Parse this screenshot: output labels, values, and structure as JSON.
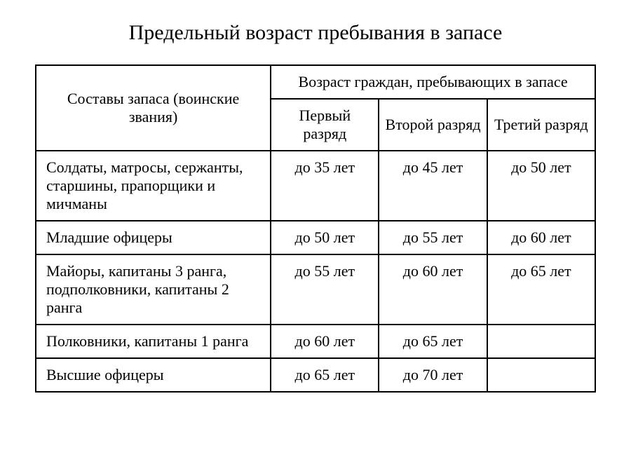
{
  "title": "Предельный возраст пребывания в запасе",
  "table": {
    "header": {
      "left": "Составы запаса (воинские звания)",
      "right": "Возраст граждан, пребывающих в запасе",
      "sub": [
        "Первый разряд",
        "Второй разряд",
        "Третий разряд"
      ]
    },
    "rows": [
      {
        "rank": "Солдаты, матросы, сержанты, старшины, прапорщики и мичманы",
        "c1": "до 35 лет",
        "c2": "до 45 лет",
        "c3": "до 50 лет"
      },
      {
        "rank": "Младшие офицеры",
        "c1": "до 50 лет",
        "c2": "до 55 лет",
        "c3": "до 60 лет"
      },
      {
        "rank": "Майоры, капитаны 3 ранга, подполковники, капитаны 2 ранга",
        "c1": "до 55 лет",
        "c2": "до 60 лет",
        "c3": "до 65 лет"
      },
      {
        "rank": "Полковники, капитаны 1 ранга",
        "c1": "до 60 лет",
        "c2": "до 65 лет",
        "c3": ""
      },
      {
        "rank": "Высшие офицеры",
        "c1": "до 65 лет",
        "c2": "до 70 лет",
        "c3": ""
      }
    ]
  }
}
